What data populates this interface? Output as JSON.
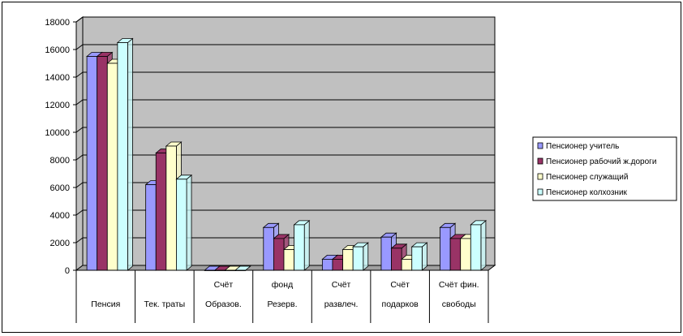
{
  "chart_data": {
    "type": "bar",
    "categories": [
      [
        "Пенсия"
      ],
      [
        "Тек. траты"
      ],
      [
        "Счёт",
        "Образов."
      ],
      [
        "фонд",
        "Резерв."
      ],
      [
        "Счёт",
        "развлеч."
      ],
      [
        "Счёт",
        "подарков"
      ],
      [
        "Счёт фин.",
        "свободы"
      ]
    ],
    "series": [
      {
        "name": "Пенсионер учитель",
        "color": "#9999ff",
        "values": [
          15500,
          6200,
          0,
          3100,
          800,
          2400,
          3100
        ]
      },
      {
        "name": "Пенсионер рабочий ж.дороги",
        "color": "#993366",
        "values": [
          15500,
          8500,
          0,
          2300,
          800,
          1600,
          2300
        ]
      },
      {
        "name": "Пенсионер служащий",
        "color": "#ffffcc",
        "values": [
          15000,
          9000,
          0,
          1500,
          1500,
          800,
          2300
        ]
      },
      {
        "name": "Пенсионер колхозник",
        "color": "#ccffff",
        "values": [
          16500,
          6600,
          0,
          3300,
          1700,
          1700,
          3300
        ]
      }
    ],
    "y_ticks": [
      "0",
      "2000",
      "4000",
      "6000",
      "8000",
      "10000",
      "12000",
      "14000",
      "16000",
      "18000"
    ],
    "ylim": [
      0,
      18000
    ],
    "grid": true,
    "legend_position": "right",
    "wall_color": "#c0c0c0"
  }
}
